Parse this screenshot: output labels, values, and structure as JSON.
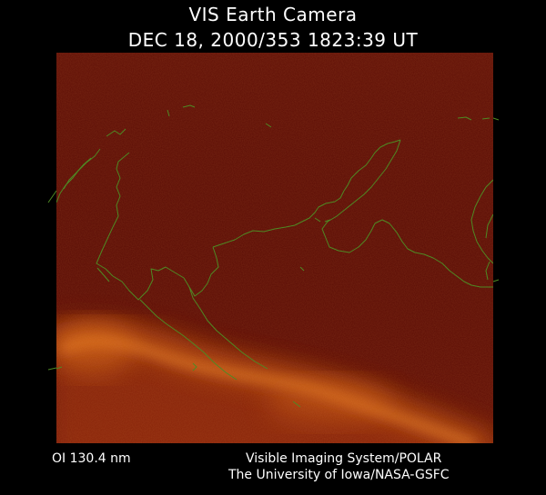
{
  "image": {
    "title": "VIS Earth Camera",
    "timestamp": "DEC 18, 2000/353 1823:39 UT",
    "filter_label": "OI  130.4 nm",
    "instrument": "Visible Imaging System/POLAR",
    "institution": "The University of Iowa/NASA-GSFC",
    "colors": {
      "background": "#000000",
      "frame": "#5a0c05",
      "aurora": "#e07018",
      "coastline": "#4e8a24",
      "text": "#ffffff"
    }
  }
}
